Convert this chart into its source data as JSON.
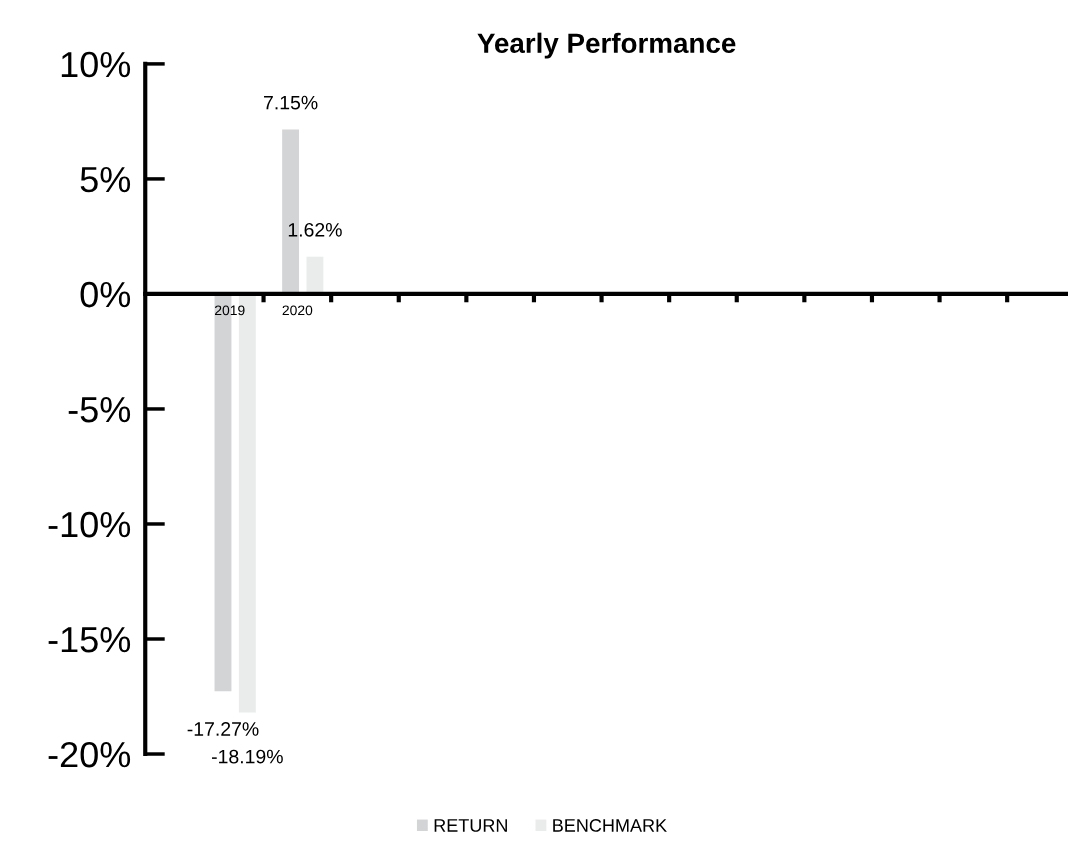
{
  "chart_data": {
    "type": "bar",
    "title": "Yearly Performance",
    "categories": [
      "2019",
      "2020",
      null,
      null,
      null,
      null,
      null,
      null,
      null,
      null,
      null,
      null,
      null
    ],
    "series": [
      {
        "name": "RETURN",
        "color": "#d3d4d6",
        "values": [
          -17.27,
          7.15,
          null,
          null,
          null,
          null,
          null,
          null,
          null,
          null,
          null,
          null,
          null
        ],
        "value_labels": [
          "-17.27%",
          "7.15%",
          null,
          null,
          null,
          null,
          null,
          null,
          null,
          null,
          null,
          null,
          null
        ]
      },
      {
        "name": "BENCHMARK",
        "color": "#eaebeb",
        "values": [
          -18.19,
          1.62,
          null,
          null,
          null,
          null,
          null,
          null,
          null,
          null,
          null,
          null,
          null
        ],
        "value_labels": [
          "-18.19%",
          "1.62%",
          null,
          null,
          null,
          null,
          null,
          null,
          null,
          null,
          null,
          null,
          null
        ]
      }
    ],
    "ylim": [
      -20,
      10
    ],
    "yticks": [
      {
        "value": -20,
        "label": "-20%"
      },
      {
        "value": -15,
        "label": "-15%"
      },
      {
        "value": -10,
        "label": "-10%"
      },
      {
        "value": -5,
        "label": "-5%"
      },
      {
        "value": 0,
        "label": "0%"
      },
      {
        "value": 5,
        "label": "5%"
      },
      {
        "value": 10,
        "label": "10%"
      }
    ],
    "grid": false,
    "legend": "bottom"
  }
}
